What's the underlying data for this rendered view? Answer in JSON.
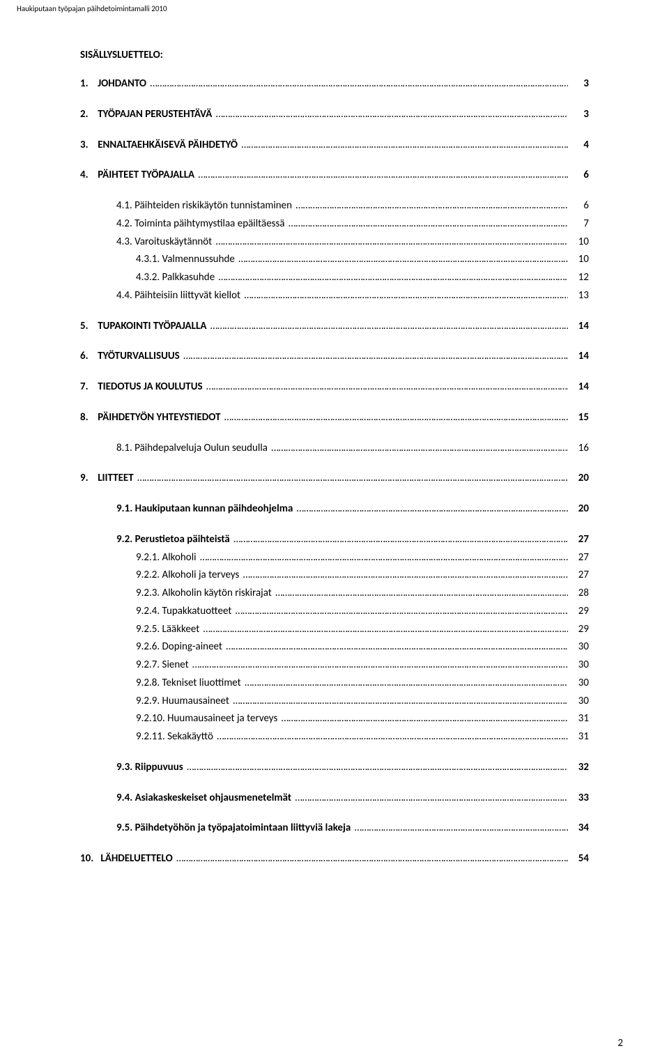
{
  "header": "Haukiputaan työpajan päihdetoimintamalli 2010",
  "title": "SISÄLLYSLUETTELO:",
  "page_number": "2",
  "toc": [
    {
      "num": "1.",
      "label": "JOHDANTO",
      "page": "3",
      "bold": true,
      "indent": 0,
      "spaceAfter": true
    },
    {
      "num": "2.",
      "label": "TYÖPAJAN PERUSTEHTÄVÄ",
      "page": "3",
      "bold": true,
      "indent": 0,
      "spaceAfter": true
    },
    {
      "num": "3.",
      "label": "ENNALTAEHKÄISEVÄ PÄIHDETYÖ",
      "page": "4",
      "bold": true,
      "indent": 0,
      "spaceAfter": true
    },
    {
      "num": "4.",
      "label": "PÄIHTEET TYÖPAJALLA",
      "page": "6",
      "bold": true,
      "indent": 0,
      "spaceAfter": true
    },
    {
      "num": "",
      "label": "4.1. Päihteiden riskikäytön tunnistaminen",
      "page": "6",
      "bold": false,
      "indent": 1,
      "spaceAfter": false
    },
    {
      "num": "",
      "label": "4.2. Toiminta päihtymystilaa epäiltäessä",
      "page": "7",
      "bold": false,
      "indent": 1,
      "spaceAfter": false
    },
    {
      "num": "",
      "label": "4.3. Varoituskäytännöt",
      "page": "10",
      "bold": false,
      "indent": 1,
      "spaceAfter": false
    },
    {
      "num": "",
      "label": "4.3.1. Valmennussuhde",
      "page": "10",
      "bold": false,
      "indent": 2,
      "spaceAfter": false
    },
    {
      "num": "",
      "label": "4.3.2. Palkkasuhde",
      "page": "12",
      "bold": false,
      "indent": 2,
      "spaceAfter": false
    },
    {
      "num": "",
      "label": "4.4. Päihteisiin liittyvät kiellot",
      "page": "13",
      "bold": false,
      "indent": 1,
      "spaceAfter": true
    },
    {
      "num": "5.",
      "label": "TUPAKOINTI TYÖPAJALLA",
      "page": "14",
      "bold": true,
      "indent": 0,
      "spaceAfter": true
    },
    {
      "num": "6.",
      "label": "TYÖTURVALLISUUS",
      "page": "14",
      "bold": true,
      "indent": 0,
      "spaceAfter": true
    },
    {
      "num": "7.",
      "label": "TIEDOTUS JA KOULUTUS",
      "page": "14",
      "bold": true,
      "indent": 0,
      "spaceAfter": true
    },
    {
      "num": "8.",
      "label": "PÄIHDETYÖN YHTEYSTIEDOT",
      "page": "15",
      "bold": true,
      "indent": 0,
      "spaceAfter": true
    },
    {
      "num": "",
      "label": "8.1. Päihdepalveluja Oulun seudulla",
      "page": "16",
      "bold": false,
      "indent": 1,
      "spaceAfter": true
    },
    {
      "num": "9.",
      "label": "LIITTEET",
      "page": "20",
      "bold": true,
      "indent": 0,
      "spaceAfter": true
    },
    {
      "num": "",
      "label": "9.1. Haukiputaan kunnan päihdeohjelma",
      "page": "20",
      "bold": true,
      "indent": 1,
      "spaceAfter": true
    },
    {
      "num": "",
      "label": "9.2. Perustietoa päihteistä",
      "page": "27",
      "bold": true,
      "indent": 1,
      "spaceAfter": false
    },
    {
      "num": "",
      "label": "9.2.1. Alkoholi",
      "page": "27",
      "bold": false,
      "indent": 2,
      "spaceAfter": false
    },
    {
      "num": "",
      "label": "9.2.2. Alkoholi ja terveys",
      "page": "27",
      "bold": false,
      "indent": 2,
      "spaceAfter": false
    },
    {
      "num": "",
      "label": "9.2.3. Alkoholin käytön riskirajat",
      "page": "28",
      "bold": false,
      "indent": 2,
      "spaceAfter": false
    },
    {
      "num": "",
      "label": "9.2.4. Tupakkatuotteet",
      "page": "29",
      "bold": false,
      "indent": 2,
      "spaceAfter": false
    },
    {
      "num": "",
      "label": "9.2.5. Lääkkeet",
      "page": "29",
      "bold": false,
      "indent": 2,
      "spaceAfter": false
    },
    {
      "num": "",
      "label": "9.2.6. Doping-aineet",
      "page": "30",
      "bold": false,
      "indent": 2,
      "spaceAfter": false
    },
    {
      "num": "",
      "label": "9.2.7. Sienet",
      "page": "30",
      "bold": false,
      "indent": 2,
      "spaceAfter": false
    },
    {
      "num": "",
      "label": "9.2.8. Tekniset liuottimet",
      "page": "30",
      "bold": false,
      "indent": 2,
      "spaceAfter": false
    },
    {
      "num": "",
      "label": "9.2.9. Huumausaineet",
      "page": "30",
      "bold": false,
      "indent": 2,
      "spaceAfter": false
    },
    {
      "num": "",
      "label": "9.2.10. Huumausaineet ja terveys",
      "page": "31",
      "bold": false,
      "indent": 2,
      "spaceAfter": false
    },
    {
      "num": "",
      "label": "9.2.11. Sekakäyttö",
      "page": "31",
      "bold": false,
      "indent": 2,
      "spaceAfter": true
    },
    {
      "num": "",
      "label": "9.3. Riippuvuus",
      "page": "32",
      "bold": true,
      "indent": 1,
      "spaceAfter": true
    },
    {
      "num": "",
      "label": "9.4. Asiakaskeskeiset ohjausmenetelmät",
      "page": "33",
      "bold": true,
      "indent": 1,
      "spaceAfter": true
    },
    {
      "num": "",
      "label": "9.5. Päihdetyöhön ja työpajatoimintaan liittyviä lakeja",
      "page": "34",
      "bold": true,
      "indent": 1,
      "spaceAfter": true
    },
    {
      "num": "10.",
      "label": "LÄHDELUETTELO",
      "page": "54",
      "bold": true,
      "indent": 0,
      "spaceAfter": false
    }
  ]
}
